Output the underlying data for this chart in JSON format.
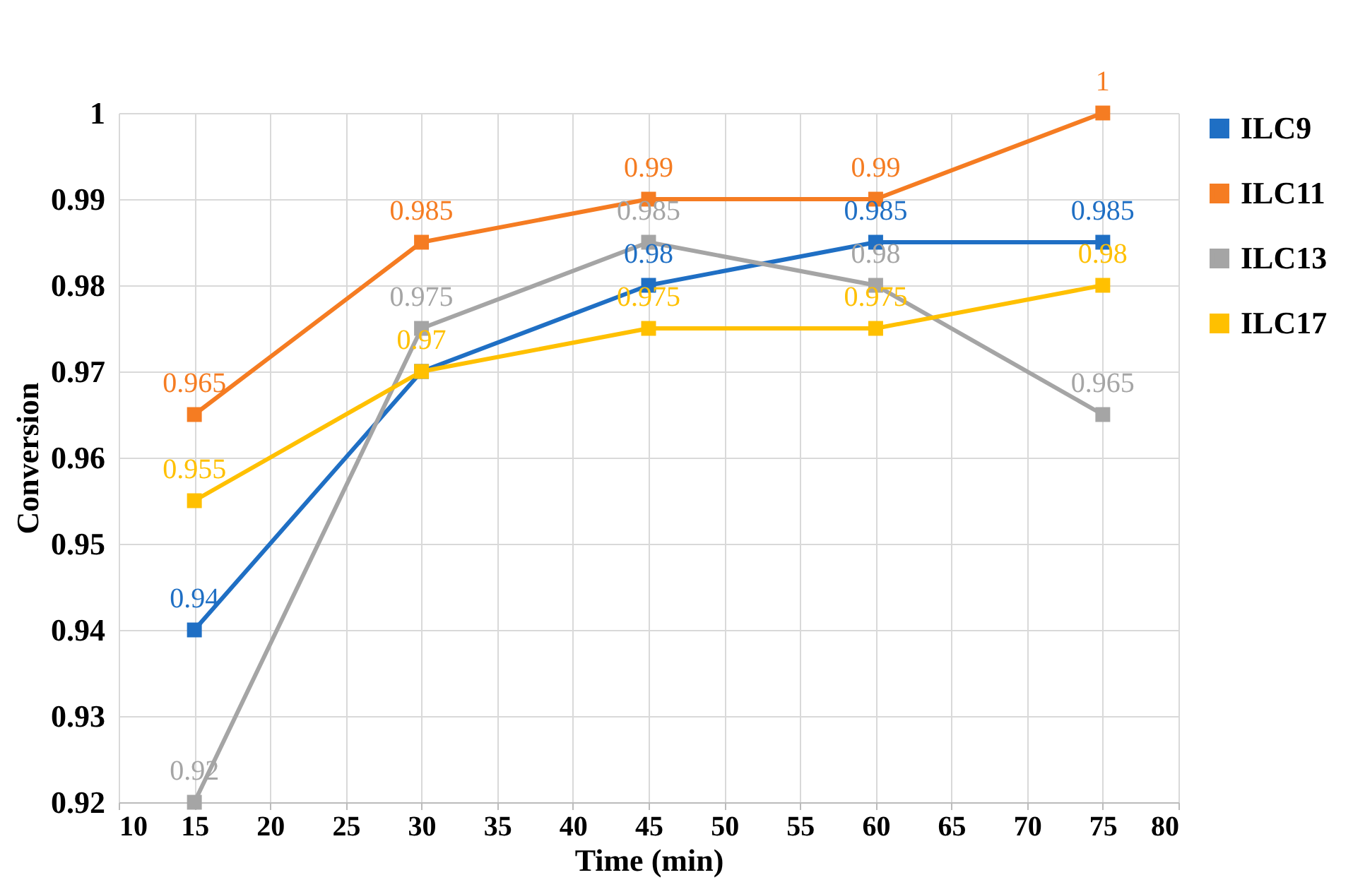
{
  "chart_data": {
    "type": "line",
    "xlabel": "Time (min)",
    "ylabel": "Conversion",
    "x": [
      15,
      30,
      45,
      60,
      75
    ],
    "series": [
      {
        "name": "ILC9",
        "color": "#1f6fc4",
        "values": [
          0.94,
          0.97,
          0.98,
          0.985,
          0.985
        ],
        "value_labels": [
          "0.94",
          null,
          "0.98",
          "0.985",
          "0.985"
        ]
      },
      {
        "name": "ILC11",
        "color": "#f57c22",
        "values": [
          0.965,
          0.985,
          0.99,
          0.99,
          1
        ],
        "value_labels": [
          "0.965",
          "0.985",
          "0.99",
          "0.99",
          "1"
        ]
      },
      {
        "name": "ILC13",
        "color": "#a5a5a5",
        "values": [
          0.92,
          0.975,
          0.985,
          0.98,
          0.965
        ],
        "value_labels": [
          "0.92",
          "0.975",
          "0.985",
          "0.98",
          "0.965"
        ]
      },
      {
        "name": "ILC17",
        "color": "#ffc000",
        "values": [
          0.955,
          0.97,
          0.975,
          0.975,
          0.98
        ],
        "value_labels": [
          "0.955",
          "0.97",
          "0.975",
          "0.975",
          "0.98"
        ]
      }
    ],
    "xlim": [
      10,
      80
    ],
    "xticks": [
      10,
      15,
      20,
      25,
      30,
      35,
      40,
      45,
      50,
      55,
      60,
      65,
      70,
      75,
      80
    ],
    "ylim": [
      0.92,
      1
    ],
    "yticks": [
      0.92,
      0.93,
      0.94,
      0.95,
      0.96,
      0.97,
      0.98,
      0.99,
      1
    ],
    "grid": true,
    "legend": "right",
    "marker": "square",
    "line_style": "solid"
  }
}
